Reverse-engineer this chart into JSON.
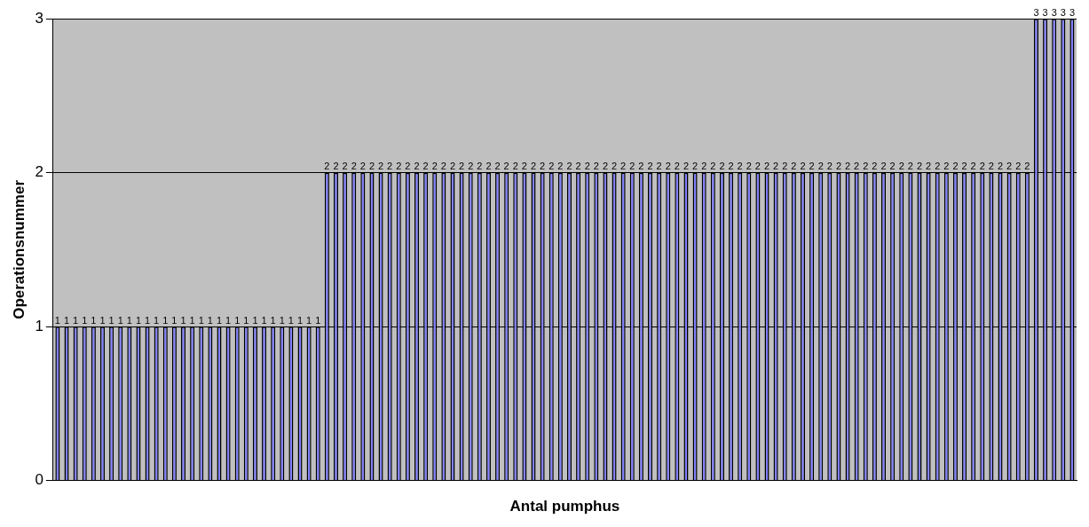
{
  "chart_data": {
    "type": "bar",
    "xlabel": "Antal pumphus",
    "ylabel": "Operationsnummer",
    "categories": [
      null,
      null,
      null,
      null,
      null,
      null,
      null,
      null,
      null,
      null,
      null,
      null,
      null,
      null,
      null,
      null,
      null,
      null,
      null,
      null,
      null,
      null,
      null,
      null,
      null,
      null,
      null,
      null,
      null,
      null,
      null,
      null,
      null,
      null,
      null,
      null,
      null,
      null,
      null,
      null,
      null,
      null,
      null,
      null,
      null,
      null,
      null,
      null,
      null,
      null,
      null,
      null,
      null,
      null,
      null,
      null,
      null,
      null,
      null,
      null,
      null,
      null,
      null,
      null,
      null,
      null,
      null,
      null,
      null,
      null,
      null,
      null,
      null,
      null,
      null,
      null,
      null,
      null,
      null,
      null,
      null,
      null,
      null,
      null,
      null,
      null,
      null,
      null,
      null,
      null,
      null,
      null,
      null,
      null,
      null,
      null,
      null,
      null,
      null,
      null,
      null,
      null,
      null,
      null,
      null,
      null,
      null,
      null,
      null,
      null,
      null,
      null,
      null,
      null
    ],
    "values": [
      1,
      1,
      1,
      1,
      1,
      1,
      1,
      1,
      1,
      1,
      1,
      1,
      1,
      1,
      1,
      1,
      1,
      1,
      1,
      1,
      1,
      1,
      1,
      1,
      1,
      1,
      1,
      1,
      1,
      1,
      2,
      2,
      2,
      2,
      2,
      2,
      2,
      2,
      2,
      2,
      2,
      2,
      2,
      2,
      2,
      2,
      2,
      2,
      2,
      2,
      2,
      2,
      2,
      2,
      2,
      2,
      2,
      2,
      2,
      2,
      2,
      2,
      2,
      2,
      2,
      2,
      2,
      2,
      2,
      2,
      2,
      2,
      2,
      2,
      2,
      2,
      2,
      2,
      2,
      2,
      2,
      2,
      2,
      2,
      2,
      2,
      2,
      2,
      2,
      2,
      2,
      2,
      2,
      2,
      2,
      2,
      2,
      2,
      2,
      2,
      2,
      2,
      2,
      2,
      2,
      2,
      2,
      2,
      2,
      3,
      3,
      3,
      3,
      3
    ],
    "color": "#8080ff",
    "ylim": [
      0,
      3
    ],
    "yticks": [
      0,
      1,
      2,
      3
    ],
    "grid": "y",
    "data_labels": true,
    "legend": false
  }
}
